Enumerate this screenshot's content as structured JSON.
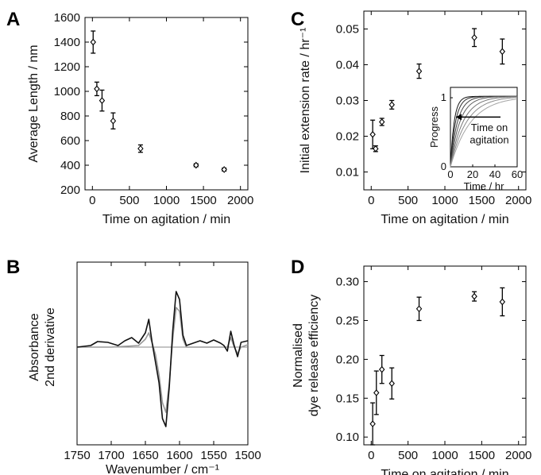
{
  "chart_data": [
    {
      "panel": "A",
      "type": "scatter",
      "xlabel": "Time on agitation / min",
      "ylabel": "Average Length / nm",
      "xlim": [
        -100,
        2100
      ],
      "ylim": [
        200,
        1600
      ],
      "xticks": [
        0,
        500,
        1000,
        1500,
        2000
      ],
      "yticks": [
        200,
        400,
        600,
        800,
        1000,
        1200,
        1400,
        1600
      ],
      "points": [
        {
          "x": 10,
          "y": 1400,
          "err": 90
        },
        {
          "x": 60,
          "y": 1020,
          "err": 55
        },
        {
          "x": 130,
          "y": 925,
          "err": 85
        },
        {
          "x": 280,
          "y": 760,
          "err": 65
        },
        {
          "x": 650,
          "y": 535,
          "err": 30
        },
        {
          "x": 1400,
          "y": 400,
          "err": 12
        },
        {
          "x": 1780,
          "y": 365,
          "err": 12
        }
      ]
    },
    {
      "panel": "C",
      "type": "scatter",
      "xlabel": "Time on agitation / min",
      "ylabel": "Initial extension rate / hr⁻¹",
      "xlim": [
        -100,
        2100
      ],
      "ylim": [
        0.005,
        0.055
      ],
      "xticks": [
        0,
        500,
        1000,
        1500,
        2000
      ],
      "yticks": [
        0.01,
        0.02,
        0.03,
        0.04,
        0.05
      ],
      "points": [
        {
          "x": 20,
          "y": 0.0205,
          "err": 0.004
        },
        {
          "x": 60,
          "y": 0.0165,
          "err": 0.0008
        },
        {
          "x": 145,
          "y": 0.024,
          "err": 0.001
        },
        {
          "x": 280,
          "y": 0.0288,
          "err": 0.0012
        },
        {
          "x": 650,
          "y": 0.0382,
          "err": 0.002
        },
        {
          "x": 1400,
          "y": 0.0476,
          "err": 0.0025
        },
        {
          "x": 1780,
          "y": 0.0437,
          "err": 0.0035
        }
      ],
      "inset": {
        "type": "line",
        "xlabel": "Time / hr",
        "ylabel": "Progress",
        "xlim": [
          0,
          60
        ],
        "ylim": [
          0,
          1.15
        ],
        "xticks": [
          0,
          20,
          40,
          60
        ],
        "yticks": [
          0,
          1
        ],
        "annotation": "Time on agitation",
        "annotation_line2": "agitation",
        "annotation_line1": "Time on",
        "series_rates": [
          0.3,
          0.22,
          0.16,
          0.12,
          0.09,
          0.07,
          0.055
        ]
      }
    },
    {
      "panel": "B",
      "type": "line",
      "xlabel": "Wavenumber / cm⁻¹",
      "ylabel_line1": "Absorbance",
      "ylabel_line2": "2nd derivative",
      "xlim": [
        1750,
        1500
      ],
      "xticks": [
        1750,
        1700,
        1650,
        1600,
        1550,
        1500
      ],
      "series": [
        {
          "color": "#111111",
          "x": [
            1750,
            1730,
            1720,
            1705,
            1690,
            1680,
            1670,
            1660,
            1650,
            1645,
            1640,
            1635,
            1630,
            1625,
            1620,
            1615,
            1610,
            1605,
            1600,
            1595,
            1590,
            1580,
            1570,
            1560,
            1550,
            1540,
            1535,
            1530,
            1525,
            1520,
            1515,
            1510,
            1500
          ],
          "y": [
            0.0,
            0.02,
            0.07,
            0.06,
            0.02,
            0.08,
            0.12,
            0.05,
            0.18,
            0.35,
            0.05,
            -0.2,
            -0.45,
            -0.9,
            -1.0,
            -0.5,
            0.2,
            0.7,
            0.6,
            0.15,
            0.02,
            0.05,
            0.08,
            0.05,
            0.09,
            0.05,
            0.02,
            -0.05,
            0.2,
            0.02,
            -0.12,
            0.06,
            0.08
          ]
        },
        {
          "color": "#999999",
          "x": [
            1750,
            1700,
            1660,
            1650,
            1645,
            1640,
            1635,
            1630,
            1625,
            1620,
            1615,
            1610,
            1605,
            1600,
            1595,
            1590,
            1580,
            1560,
            1540,
            1530,
            1525,
            1520,
            1515,
            1510,
            1500
          ],
          "y": [
            0.0,
            0.0,
            0.02,
            0.1,
            0.18,
            0.05,
            -0.1,
            -0.35,
            -0.7,
            -0.82,
            -0.45,
            0.1,
            0.5,
            0.45,
            0.1,
            0.0,
            0.0,
            0.0,
            0.0,
            0.0,
            0.12,
            0.0,
            -0.08,
            0.0,
            0.03
          ]
        }
      ]
    },
    {
      "panel": "D",
      "type": "scatter",
      "xlabel": "Time on agitation / min",
      "ylabel_line1": "Normalised",
      "ylabel_line2": "dye release efficiency",
      "xlim": [
        -100,
        2100
      ],
      "ylim": [
        0.09,
        0.32
      ],
      "xticks": [
        0,
        500,
        1000,
        1500,
        2000
      ],
      "yticks": [
        0.1,
        0.15,
        0.2,
        0.25,
        0.3
      ],
      "points": [
        {
          "x": 20,
          "y": 0.117,
          "err": 0.027
        },
        {
          "x": 70,
          "y": 0.157,
          "err": 0.028
        },
        {
          "x": 145,
          "y": 0.187,
          "err": 0.018
        },
        {
          "x": 280,
          "y": 0.169,
          "err": 0.02
        },
        {
          "x": 650,
          "y": 0.265,
          "err": 0.015
        },
        {
          "x": 1400,
          "y": 0.281,
          "err": 0.006
        },
        {
          "x": 1780,
          "y": 0.274,
          "err": 0.018
        }
      ]
    }
  ],
  "panel_labels": [
    "A",
    "B",
    "C",
    "D"
  ],
  "tick_format": {
    "A": "int",
    "C": "2dp",
    "D": "2dp",
    "B": "int"
  }
}
